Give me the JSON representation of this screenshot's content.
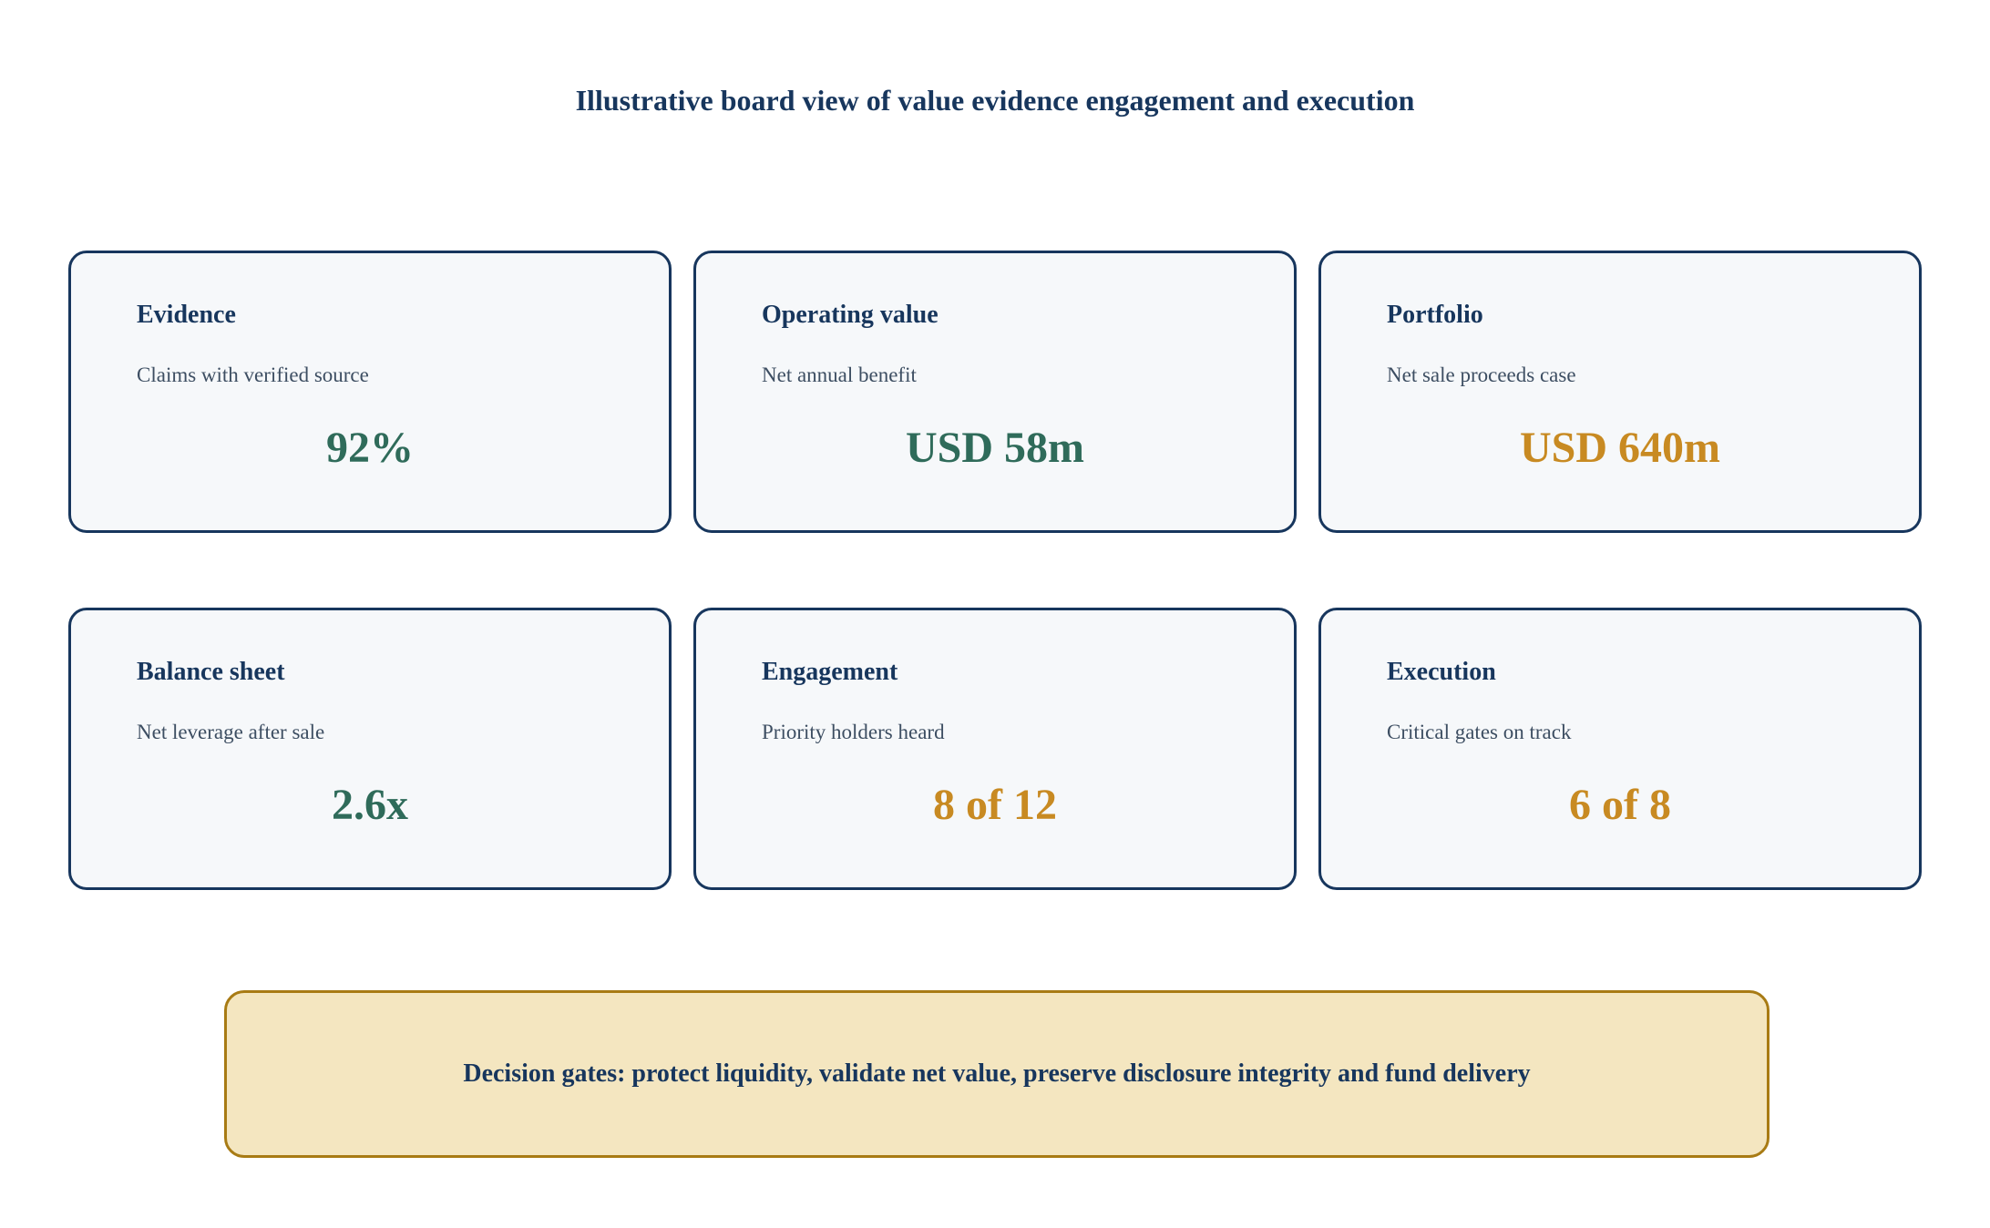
{
  "title": "Illustrative board view of value evidence engagement and execution",
  "colors": {
    "navy": "#17365d",
    "green": "#2f6b5a",
    "gold": "#c88a22",
    "card_bg": "#f6f8fa",
    "banner_bg": "#f4e6c0",
    "banner_border": "#a87b14"
  },
  "cards": [
    {
      "label": "Evidence",
      "description": "Claims with verified source",
      "value": "92%",
      "value_color": "#2f6b5a"
    },
    {
      "label": "Operating value",
      "description": "Net annual benefit",
      "value": "USD 58m",
      "value_color": "#2f6b5a"
    },
    {
      "label": "Portfolio",
      "description": "Net sale proceeds case",
      "value": "USD 640m",
      "value_color": "#c88a22"
    },
    {
      "label": "Balance sheet",
      "description": "Net leverage after sale",
      "value": "2.6x",
      "value_color": "#2f6b5a"
    },
    {
      "label": "Engagement",
      "description": "Priority holders heard",
      "value": "8 of 12",
      "value_color": "#c88a22"
    },
    {
      "label": "Execution",
      "description": "Critical gates on track",
      "value": "6 of 8",
      "value_color": "#c88a22"
    }
  ],
  "banner": {
    "text": "Decision gates: protect liquidity, validate net value, preserve disclosure integrity and fund delivery"
  }
}
